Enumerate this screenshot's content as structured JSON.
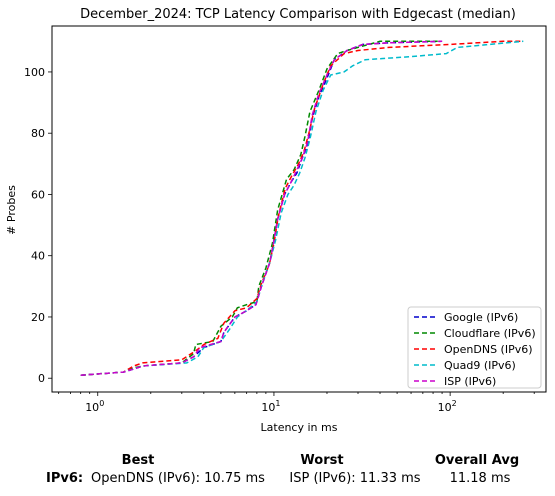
{
  "chart_data": {
    "type": "line",
    "title": "December_2024: TCP Latency Comparison with Edgecast (median)",
    "xlabel": "Latency in ms",
    "ylabel": "# Probes",
    "x_scale": "log",
    "xlim": [
      0.55,
      350
    ],
    "ylim": [
      -4.5,
      115
    ],
    "x_ticks": [
      {
        "value": 1,
        "label": "10",
        "exp": "0"
      },
      {
        "value": 10,
        "label": "10",
        "exp": "1"
      },
      {
        "value": 100,
        "label": "10",
        "exp": "2"
      }
    ],
    "y_ticks": [
      0,
      20,
      40,
      60,
      80,
      100
    ],
    "legend_position": "lower-right",
    "series": [
      {
        "name": "Google (IPv6)",
        "color": "#0000cc",
        "points": [
          [
            0.8,
            1
          ],
          [
            1.4,
            2
          ],
          [
            1.6,
            3
          ],
          [
            1.8,
            4
          ],
          [
            3.0,
            5
          ],
          [
            3.5,
            7
          ],
          [
            4.0,
            10
          ],
          [
            5.0,
            12
          ],
          [
            5.2,
            15
          ],
          [
            6.0,
            20
          ],
          [
            7.0,
            22
          ],
          [
            7.9,
            24
          ],
          [
            8.5,
            30
          ],
          [
            9.5,
            38
          ],
          [
            10.0,
            45
          ],
          [
            10.5,
            52
          ],
          [
            11.5,
            60
          ],
          [
            12.5,
            64
          ],
          [
            13.5,
            67
          ],
          [
            14.5,
            72
          ],
          [
            15.5,
            76
          ],
          [
            16.5,
            85
          ],
          [
            18.0,
            92
          ],
          [
            20.0,
            98
          ],
          [
            22.0,
            104
          ],
          [
            26.0,
            107
          ],
          [
            32.0,
            109
          ],
          [
            45.0,
            109.5
          ],
          [
            90.0,
            110
          ]
        ]
      },
      {
        "name": "Cloudflare (IPv6)",
        "color": "#008800",
        "points": [
          [
            0.8,
            1
          ],
          [
            1.4,
            2
          ],
          [
            1.5,
            3
          ],
          [
            1.8,
            4
          ],
          [
            3.0,
            5
          ],
          [
            3.5,
            8
          ],
          [
            3.6,
            11
          ],
          [
            4.5,
            12
          ],
          [
            5.0,
            17
          ],
          [
            5.8,
            20
          ],
          [
            6.2,
            23
          ],
          [
            7.0,
            24
          ],
          [
            8.0,
            25
          ],
          [
            8.2,
            30
          ],
          [
            9.0,
            36
          ],
          [
            9.8,
            44
          ],
          [
            10.5,
            55
          ],
          [
            11.8,
            65
          ],
          [
            13.0,
            68
          ],
          [
            14.2,
            73
          ],
          [
            15.0,
            79
          ],
          [
            16.0,
            87
          ],
          [
            18.0,
            94
          ],
          [
            20.0,
            101
          ],
          [
            23.0,
            106
          ],
          [
            26.0,
            107
          ],
          [
            30.0,
            108
          ],
          [
            40.0,
            110
          ],
          [
            85.0,
            110
          ]
        ]
      },
      {
        "name": "OpenDNS (IPv6)",
        "color": "#ff0000",
        "points": [
          [
            0.8,
            1
          ],
          [
            1.4,
            2
          ],
          [
            1.6,
            4
          ],
          [
            1.8,
            5
          ],
          [
            3.0,
            6
          ],
          [
            3.6,
            9
          ],
          [
            4.0,
            11
          ],
          [
            4.8,
            13
          ],
          [
            5.2,
            18
          ],
          [
            6.0,
            22
          ],
          [
            7.0,
            23
          ],
          [
            8.0,
            26
          ],
          [
            8.5,
            31
          ],
          [
            9.4,
            37
          ],
          [
            10.0,
            44
          ],
          [
            10.6,
            53
          ],
          [
            11.6,
            62
          ],
          [
            12.6,
            66
          ],
          [
            13.8,
            70
          ],
          [
            14.8,
            74
          ],
          [
            15.8,
            80
          ],
          [
            17.0,
            88
          ],
          [
            19.0,
            96
          ],
          [
            21.0,
            102
          ],
          [
            25.0,
            106
          ],
          [
            30.0,
            107
          ],
          [
            45.0,
            108
          ],
          [
            100.0,
            109
          ],
          [
            200.0,
            110
          ],
          [
            260.0,
            110
          ]
        ]
      },
      {
        "name": "Quad9 (IPv6)",
        "color": "#00bbcc",
        "points": [
          [
            0.8,
            1
          ],
          [
            1.4,
            2
          ],
          [
            1.8,
            4
          ],
          [
            3.2,
            5
          ],
          [
            3.7,
            7
          ],
          [
            4.0,
            10
          ],
          [
            5.0,
            12
          ],
          [
            5.6,
            16
          ],
          [
            6.2,
            20
          ],
          [
            7.3,
            23
          ],
          [
            8.0,
            25
          ],
          [
            8.6,
            31
          ],
          [
            9.5,
            38
          ],
          [
            10.2,
            45
          ],
          [
            11.0,
            54
          ],
          [
            12.0,
            60
          ],
          [
            13.0,
            63
          ],
          [
            14.0,
            67
          ],
          [
            15.0,
            72
          ],
          [
            16.0,
            78
          ],
          [
            17.3,
            87
          ],
          [
            19.0,
            94
          ],
          [
            21.0,
            99
          ],
          [
            25.0,
            100
          ],
          [
            28.0,
            102
          ],
          [
            33.0,
            104
          ],
          [
            60.0,
            105
          ],
          [
            95.0,
            106
          ],
          [
            110.0,
            108
          ],
          [
            260.0,
            110
          ]
        ]
      },
      {
        "name": "ISP (IPv6)",
        "color": "#cc00cc",
        "points": [
          [
            0.8,
            1
          ],
          [
            1.4,
            2
          ],
          [
            1.6,
            3
          ],
          [
            1.8,
            4
          ],
          [
            3.0,
            5
          ],
          [
            3.5,
            7
          ],
          [
            3.8,
            10
          ],
          [
            5.0,
            12
          ],
          [
            5.2,
            15
          ],
          [
            6.0,
            20
          ],
          [
            7.0,
            22
          ],
          [
            7.9,
            24
          ],
          [
            8.5,
            30
          ],
          [
            9.5,
            38
          ],
          [
            10.0,
            45
          ],
          [
            10.5,
            52
          ],
          [
            11.5,
            60
          ],
          [
            12.5,
            64
          ],
          [
            13.5,
            68
          ],
          [
            14.5,
            72
          ],
          [
            15.5,
            77
          ],
          [
            16.5,
            86
          ],
          [
            18.0,
            93
          ],
          [
            20.0,
            99
          ],
          [
            22.0,
            104
          ],
          [
            26.0,
            107
          ],
          [
            32.0,
            109
          ],
          [
            45.0,
            109.5
          ],
          [
            90.0,
            110
          ]
        ]
      }
    ]
  },
  "summary": {
    "best_header": "Best",
    "worst_header": "Worst",
    "avg_header": "Overall Avg",
    "row_label": "IPv6:",
    "best_value": "OpenDNS (IPv6): 10.75 ms",
    "worst_value": "ISP (IPv6): 11.33 ms",
    "avg_value": "11.18 ms"
  }
}
